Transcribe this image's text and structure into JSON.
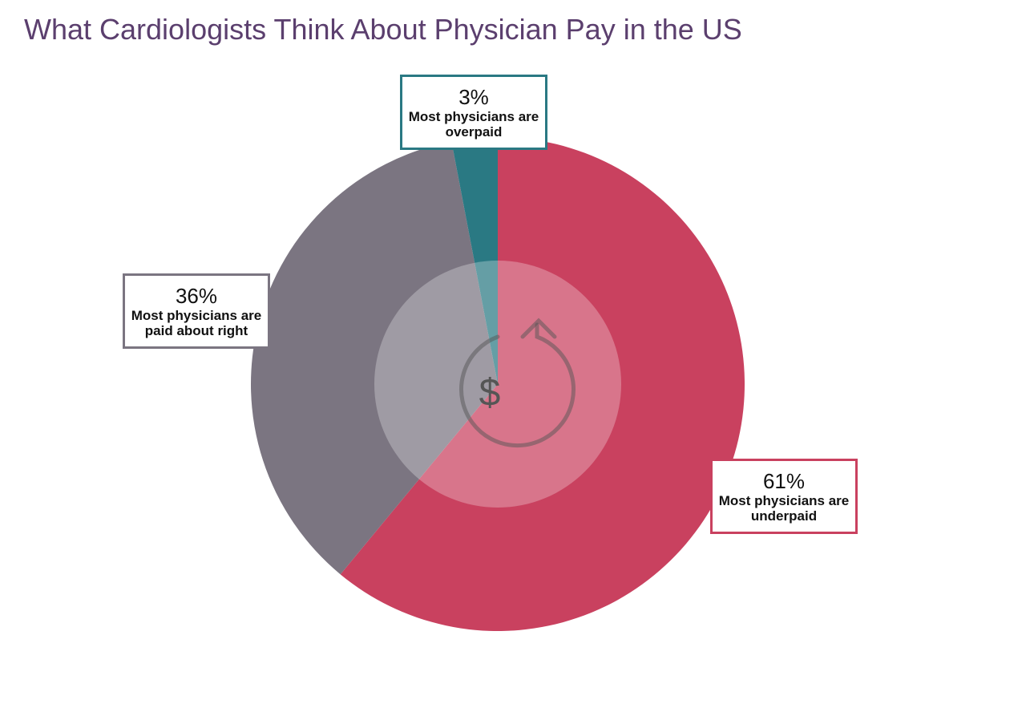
{
  "chart_data": {
    "type": "pie",
    "title": "What Cardiologists Think About Physician Pay in the US",
    "categories": [
      "Most physicians are underpaid",
      "Most physicians are paid about right",
      "Most physicians are overpaid"
    ],
    "values": [
      61,
      36,
      3
    ],
    "value_labels": [
      "61%",
      "36%",
      "3%"
    ],
    "colors": [
      "#c9415f",
      "#7b7581",
      "#2a7983"
    ]
  }
}
